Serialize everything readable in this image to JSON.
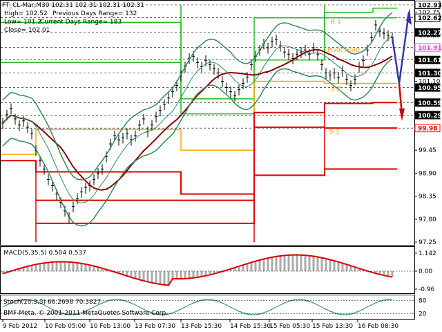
{
  "info": {
    "line1": "FT_CL-Mar,M30  102.31 102.31 102.31 102.31",
    "line2a": "High= 102.52",
    "line2b": "Previous Days Range= 132",
    "line3a": "Low= 101.2",
    "line3b": "Current Days Range= 183",
    "line4": "Close= 102.01"
  },
  "level_labels": {
    "r1": "R 1",
    "pivot": "Pivot Point",
    "s2": "S 2",
    "s3": "S 3"
  },
  "price_axis": {
    "ticks": [
      "102.75",
      "102.20",
      "101.65",
      "101.10",
      "100.55",
      "100.00",
      "99.45",
      "98.90",
      "98.35",
      "97.80",
      "97.25"
    ],
    "badges": [
      {
        "v": "102.93",
        "bg": "#ffffff",
        "fg": "#000000",
        "border": "#000000"
      },
      {
        "v": "102.62",
        "bg": "#ffffff",
        "fg": "#000000",
        "border": "#000000"
      },
      {
        "v": "102.27",
        "bg": "#000000",
        "fg": "#ffffff",
        "border": "#000000"
      },
      {
        "v": "101.91",
        "bg": "#ffffff",
        "fg": "#ff33ff",
        "border": "#ff33ff"
      },
      {
        "v": "101.61",
        "bg": "#000000",
        "fg": "#ffffff",
        "border": "#000000"
      },
      {
        "v": "101.30",
        "bg": "#000000",
        "fg": "#ffffff",
        "border": "#000000"
      },
      {
        "v": "100.95",
        "bg": "#000000",
        "fg": "#ffffff",
        "border": "#000000"
      },
      {
        "v": "100.59",
        "bg": "#000000",
        "fg": "#ffffff",
        "border": "#000000"
      },
      {
        "v": "100.29",
        "bg": "#000000",
        "fg": "#ffffff",
        "border": "#000000"
      },
      {
        "v": "99.98",
        "bg": "#ffffff",
        "fg": "#ff0000",
        "border": "#ff0000"
      }
    ]
  },
  "macd": {
    "label": "MACD(5,35,5) 0.504 0.537",
    "ticks": [
      "1.142",
      "0.00",
      "-0.96"
    ]
  },
  "stoch": {
    "label": "Stoch(10,3,3) 66.2698 70.3827",
    "ticks": [
      "80",
      "20"
    ]
  },
  "copyright": "BMF-Meta, © 2001-2011 MetaQuotes Software Corp.",
  "time_axis": [
    "9 Feb 2012",
    "10 Feb 05:00",
    "10 Feb 13:00",
    "13 Feb 07:30",
    "13 Feb 15:30",
    "14 Feb 15:30",
    "15 Feb 05:30",
    "15 Feb 13:30",
    "16 Feb 08:30"
  ],
  "colors": {
    "bollinger": "#2e8b57",
    "ma": "#8b0000",
    "pivot": "#ffa500",
    "resistance": "#22bb22",
    "support": "#dd0000",
    "arrow": "#3333aa"
  }
}
